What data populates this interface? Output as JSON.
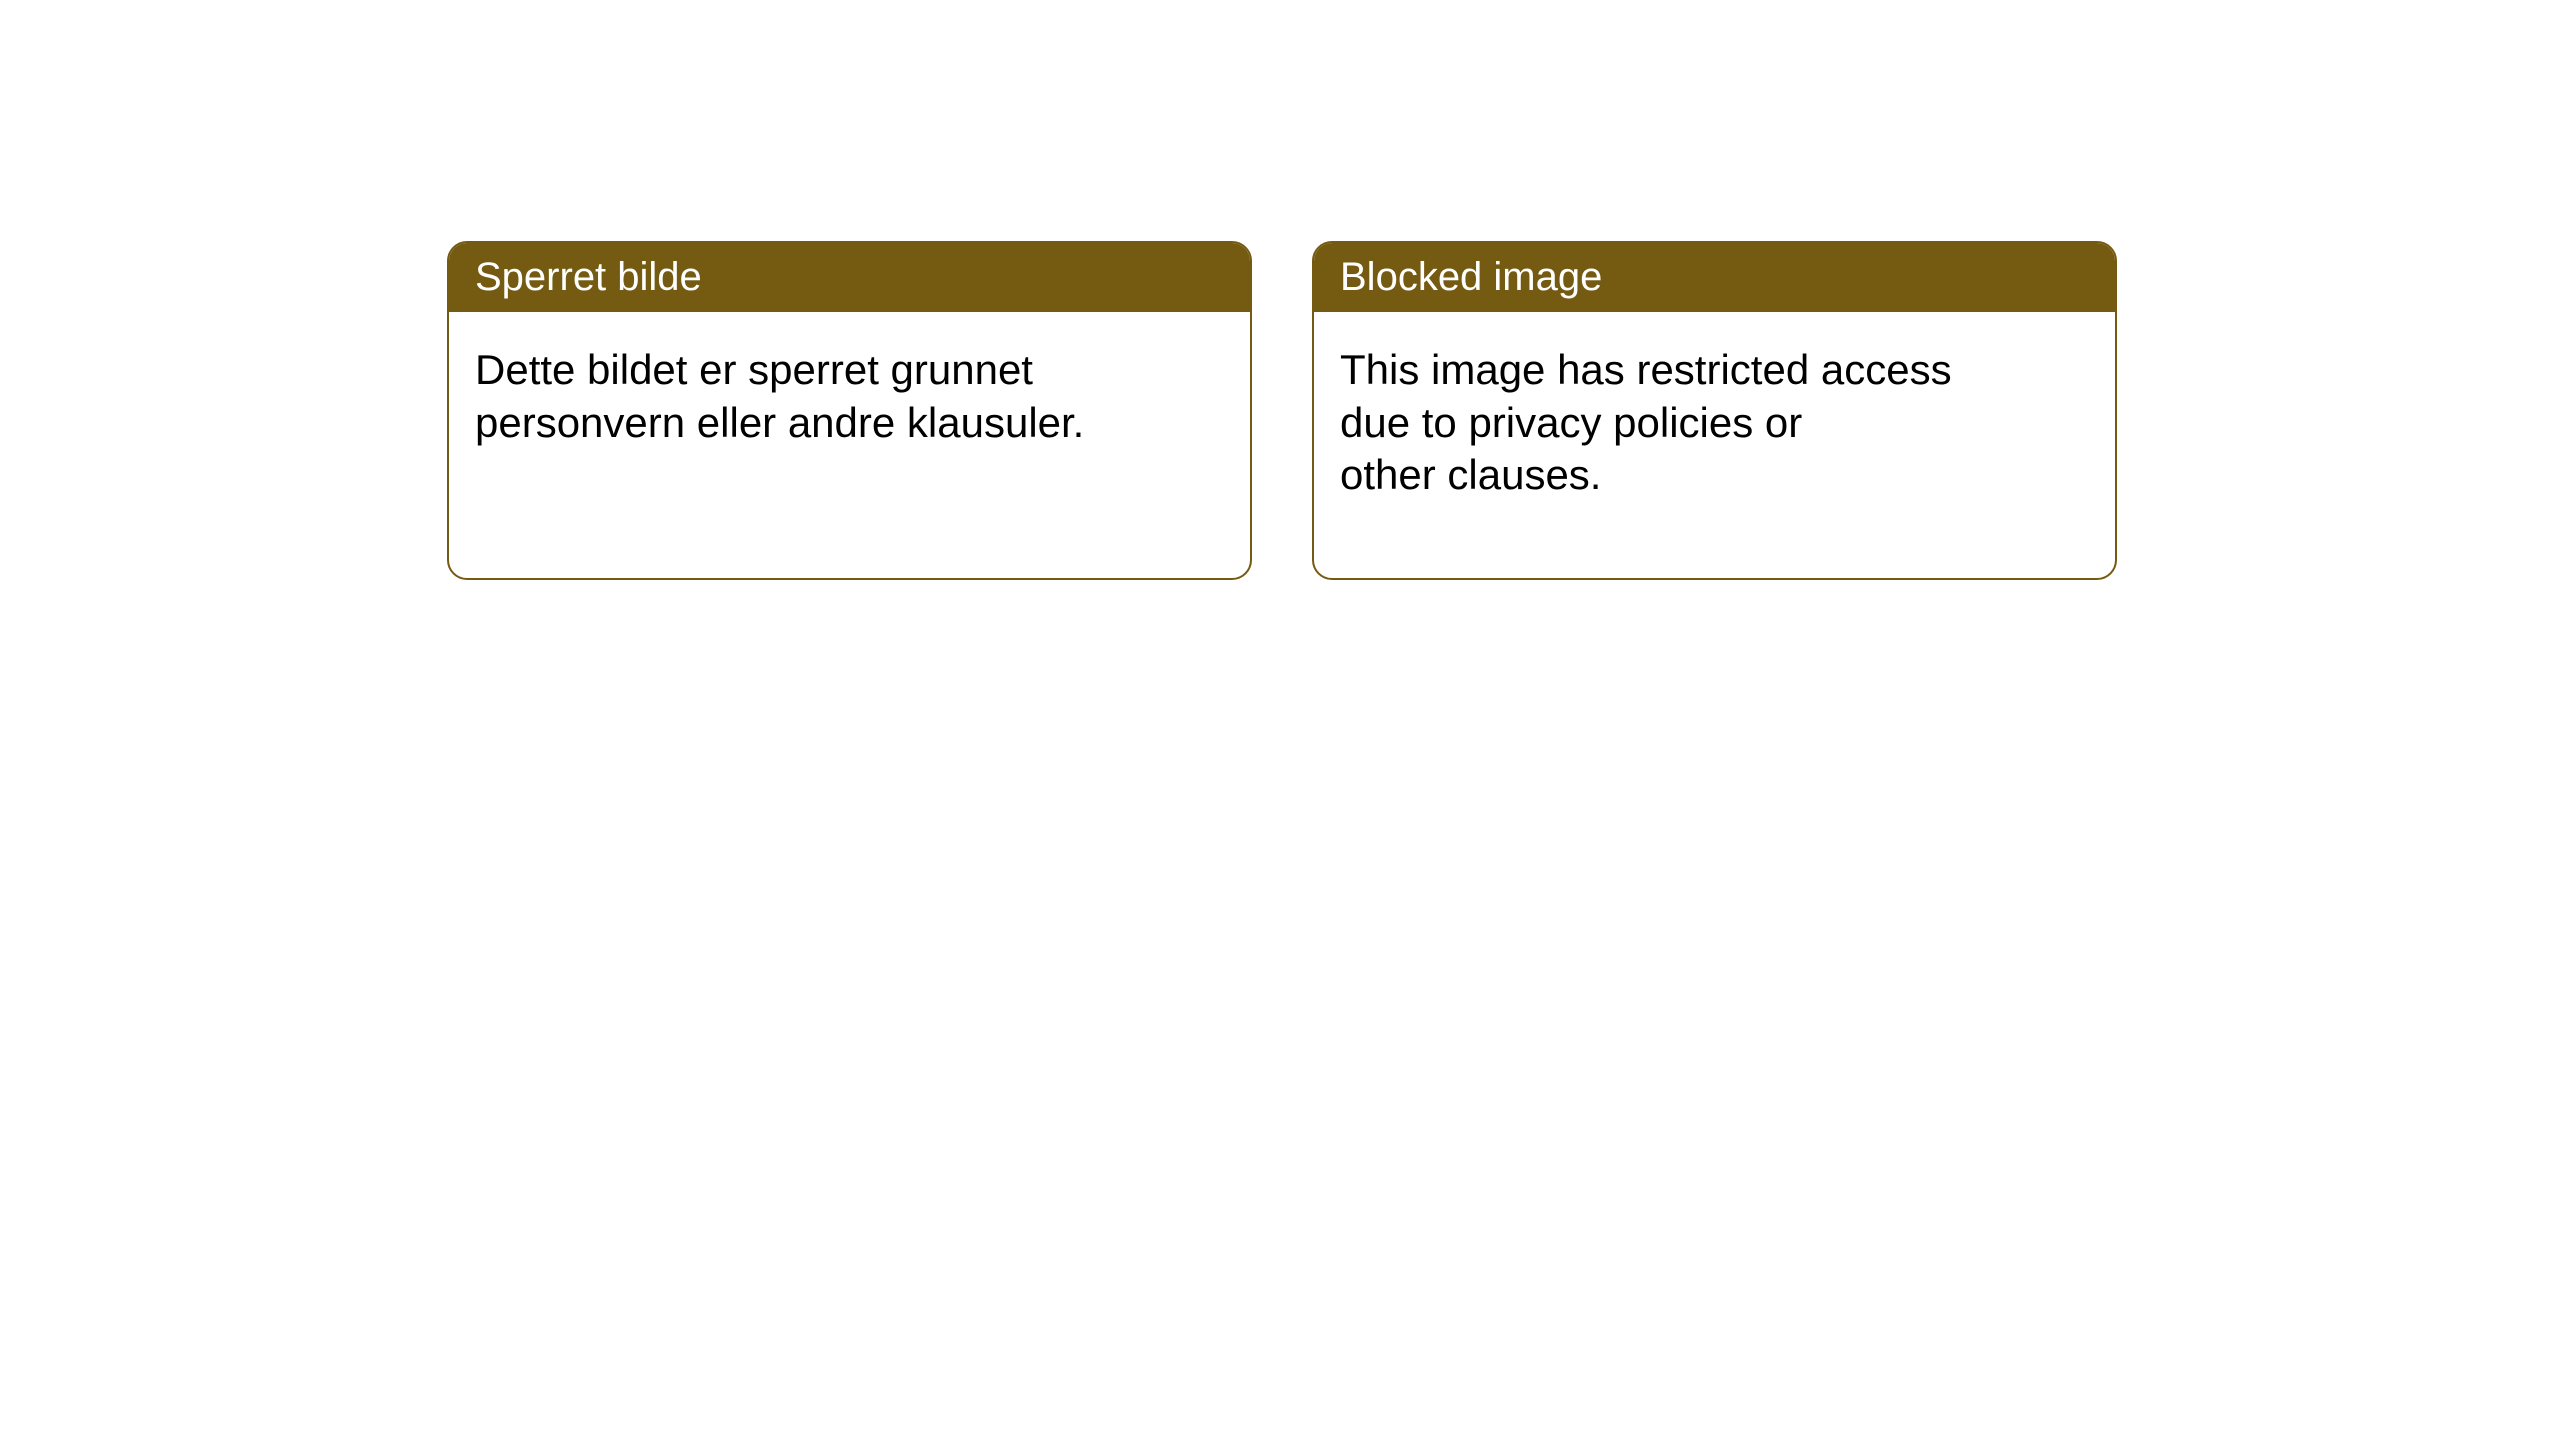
{
  "cards": [
    {
      "title": "Sperret bilde",
      "body": "Dette bildet er sperret grunnet\npersonvern eller andre klausuler."
    },
    {
      "title": "Blocked image",
      "body": "This image has restricted access\ndue to privacy policies or\nother clauses."
    }
  ],
  "style": {
    "header_bg_color": "#755a11",
    "header_text_color": "#ffffff",
    "border_color": "#755a11",
    "body_text_color": "#000000",
    "card_bg_color": "#ffffff",
    "border_radius": 20,
    "header_fontsize": 40,
    "body_fontsize": 42
  }
}
